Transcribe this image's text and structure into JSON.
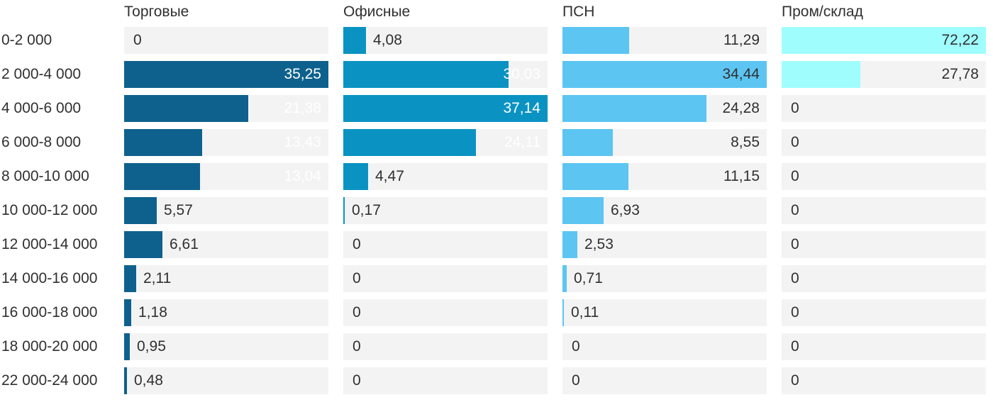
{
  "chart_data": {
    "type": "bar",
    "orientation": "horizontal",
    "layout": "small-multiples",
    "title": "",
    "xlabel": "",
    "ylabel": "",
    "grid": false,
    "legend_position": "column-headers",
    "value_decimal_separator": ",",
    "categories": [
      "0-2 000",
      "2 000-4 000",
      "4 000-6 000",
      "6 000-8 000",
      "8 000-10 000",
      "10 000-12 000",
      "12 000-14 000",
      "14 000-16 000",
      "16 000-18 000",
      "18 000-20 000",
      "22 000-24 000"
    ],
    "series": [
      {
        "name": "Торговые",
        "color": "#0e618c",
        "inside_label_color": "#ffffff",
        "values": [
          0,
          35.25,
          21.38,
          13.43,
          13.04,
          5.57,
          6.61,
          2.11,
          1.18,
          0.95,
          0.48
        ],
        "labels": [
          "0",
          "35,25",
          "21,38",
          "13,43",
          "13,04",
          "5,57",
          "6,61",
          "2,11",
          "1,18",
          "0,95",
          "0,48"
        ]
      },
      {
        "name": "Офисные",
        "color": "#0a93c2",
        "inside_label_color": "#ffffff",
        "values": [
          4.08,
          30.03,
          37.14,
          24.11,
          4.47,
          0.17,
          0,
          0,
          0,
          0,
          0
        ],
        "labels": [
          "4,08",
          "30,03",
          "37,14",
          "24,11",
          "4,47",
          "0,17",
          "0",
          "0",
          "0",
          "0",
          "0"
        ]
      },
      {
        "name": "ПСН",
        "color": "#5cc5f2",
        "inside_label_color": "#303030",
        "values": [
          11.29,
          34.44,
          24.28,
          8.55,
          11.15,
          6.93,
          2.53,
          0.71,
          0.11,
          0,
          0
        ],
        "labels": [
          "11,29",
          "34,44",
          "24,28",
          "8,55",
          "11,15",
          "6,93",
          "2,53",
          "0,71",
          "0,11",
          "0",
          "0"
        ]
      },
      {
        "name": "Пром/склад",
        "color": "#a0fdfd",
        "inside_label_color": "#303030",
        "values": [
          72.22,
          27.78,
          0,
          0,
          0,
          0,
          0,
          0,
          0,
          0,
          0
        ],
        "labels": [
          "72,22",
          "27,78",
          "0",
          "0",
          "0",
          "0",
          "0",
          "0",
          "0",
          "0",
          "0"
        ]
      }
    ],
    "style": {
      "track_color": "#f3f3f4",
      "text_color": "#303030",
      "background_color": "#ffffff"
    }
  }
}
